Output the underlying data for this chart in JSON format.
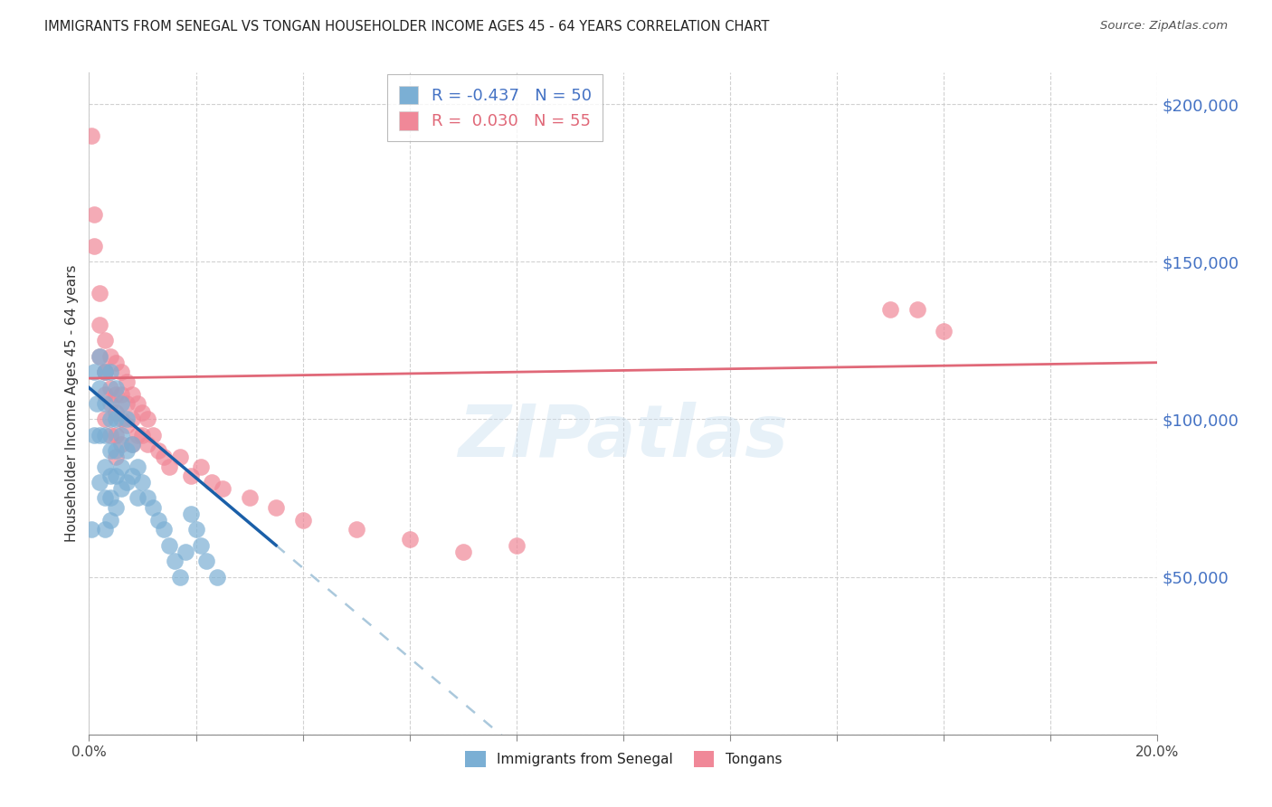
{
  "title": "IMMIGRANTS FROM SENEGAL VS TONGAN HOUSEHOLDER INCOME AGES 45 - 64 YEARS CORRELATION CHART",
  "source": "Source: ZipAtlas.com",
  "ylabel": "Householder Income Ages 45 - 64 years",
  "xlim": [
    0.0,
    0.2
  ],
  "ylim": [
    0,
    210000
  ],
  "watermark": "ZIPatlas",
  "senegal_color": "#7bafd4",
  "tongan_color": "#f08898",
  "senegal_line_color": "#1a5fa8",
  "tongan_line_color": "#e06878",
  "dashed_line_color": "#aac8dc",
  "senegal_x": [
    0.0005,
    0.001,
    0.001,
    0.0015,
    0.002,
    0.002,
    0.002,
    0.002,
    0.003,
    0.003,
    0.003,
    0.003,
    0.003,
    0.003,
    0.004,
    0.004,
    0.004,
    0.004,
    0.004,
    0.004,
    0.005,
    0.005,
    0.005,
    0.005,
    0.005,
    0.006,
    0.006,
    0.006,
    0.006,
    0.007,
    0.007,
    0.007,
    0.008,
    0.008,
    0.009,
    0.009,
    0.01,
    0.011,
    0.012,
    0.013,
    0.014,
    0.015,
    0.016,
    0.017,
    0.018,
    0.019,
    0.02,
    0.021,
    0.022,
    0.024
  ],
  "senegal_y": [
    65000,
    115000,
    95000,
    105000,
    120000,
    110000,
    95000,
    80000,
    115000,
    105000,
    95000,
    85000,
    75000,
    65000,
    115000,
    100000,
    90000,
    82000,
    75000,
    68000,
    110000,
    100000,
    90000,
    82000,
    72000,
    105000,
    95000,
    85000,
    78000,
    100000,
    90000,
    80000,
    92000,
    82000,
    85000,
    75000,
    80000,
    75000,
    72000,
    68000,
    65000,
    60000,
    55000,
    50000,
    58000,
    70000,
    65000,
    60000,
    55000,
    50000
  ],
  "tongan_x": [
    0.0005,
    0.001,
    0.001,
    0.002,
    0.002,
    0.002,
    0.003,
    0.003,
    0.003,
    0.003,
    0.003,
    0.004,
    0.004,
    0.004,
    0.004,
    0.005,
    0.005,
    0.005,
    0.005,
    0.005,
    0.006,
    0.006,
    0.006,
    0.006,
    0.007,
    0.007,
    0.007,
    0.008,
    0.008,
    0.008,
    0.009,
    0.009,
    0.01,
    0.01,
    0.011,
    0.011,
    0.012,
    0.013,
    0.014,
    0.015,
    0.017,
    0.019,
    0.021,
    0.023,
    0.025,
    0.03,
    0.035,
    0.04,
    0.05,
    0.06,
    0.07,
    0.08,
    0.15,
    0.155,
    0.16
  ],
  "tongan_y": [
    190000,
    165000,
    155000,
    140000,
    130000,
    120000,
    125000,
    115000,
    108000,
    100000,
    115000,
    120000,
    110000,
    105000,
    95000,
    118000,
    108000,
    102000,
    95000,
    88000,
    115000,
    108000,
    100000,
    92000,
    112000,
    105000,
    98000,
    108000,
    100000,
    92000,
    105000,
    95000,
    102000,
    95000,
    100000,
    92000,
    95000,
    90000,
    88000,
    85000,
    88000,
    82000,
    85000,
    80000,
    78000,
    75000,
    72000,
    68000,
    65000,
    62000,
    58000,
    60000,
    135000,
    135000,
    128000
  ]
}
